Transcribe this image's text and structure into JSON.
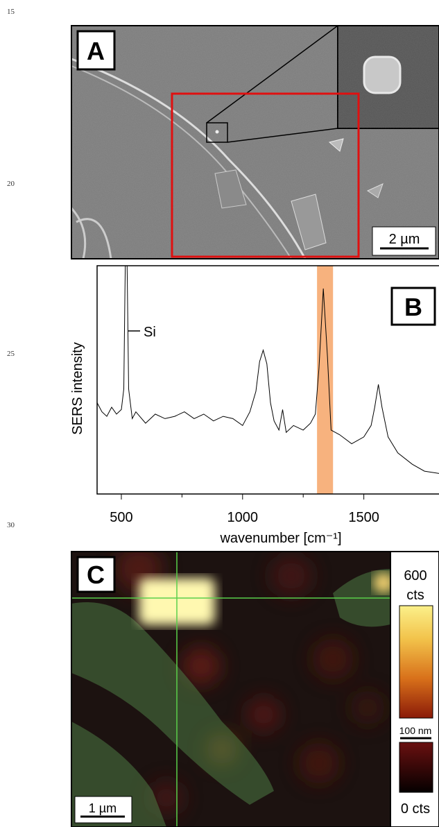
{
  "line_numbers": [
    "15",
    "20",
    "25",
    "30"
  ],
  "panel_a": {
    "label": "A",
    "scale_bar": "2 µm"
  },
  "chart_data": {
    "type": "line",
    "label": "B",
    "ylabel": "SERS intensity",
    "xlabel": "wavenumber [cm⁻¹]",
    "x": [
      400,
      420,
      440,
      460,
      480,
      500,
      510,
      515,
      520,
      525,
      530,
      545,
      560,
      600,
      640,
      680,
      720,
      760,
      800,
      840,
      880,
      920,
      960,
      1000,
      1030,
      1055,
      1070,
      1085,
      1100,
      1115,
      1130,
      1150,
      1165,
      1180,
      1210,
      1250,
      1280,
      1300,
      1315,
      1333,
      1350,
      1365,
      1400,
      1450,
      1500,
      1530,
      1545,
      1560,
      1575,
      1600,
      1640,
      1700,
      1750,
      1810
    ],
    "values": [
      40,
      36,
      34,
      38,
      35,
      37,
      46,
      90,
      130,
      90,
      46,
      33,
      36,
      31,
      35,
      33,
      34,
      36,
      33,
      35,
      32,
      34,
      33,
      30,
      36,
      45,
      58,
      63,
      57,
      40,
      32,
      28,
      37,
      27,
      30,
      28,
      31,
      35,
      55,
      90,
      60,
      28,
      26,
      22,
      25,
      30,
      38,
      48,
      38,
      25,
      18,
      13,
      10,
      9
    ],
    "color": "#000000",
    "xlim": [
      400,
      1810
    ],
    "ylim": [
      0,
      100
    ],
    "xticks": [
      500,
      1000,
      1500
    ],
    "xminor": [
      750,
      1250
    ],
    "highlight": {
      "range": [
        1307,
        1373
      ],
      "color": "#f7b27e"
    },
    "annotation": "Si"
  },
  "panel_c": {
    "label": "C",
    "colorbar_max": "600",
    "colorbar_max_unit": "cts",
    "colorbar_scale": "100 nm",
    "colorbar_min": "0 cts",
    "scale_bar": "1 µm"
  }
}
